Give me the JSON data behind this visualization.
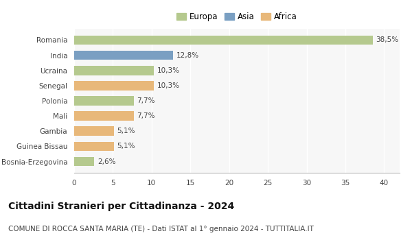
{
  "categories": [
    "Romania",
    "India",
    "Ucraina",
    "Senegal",
    "Polonia",
    "Mali",
    "Gambia",
    "Guinea Bissau",
    "Bosnia-Erzegovina"
  ],
  "values": [
    38.5,
    12.8,
    10.3,
    10.3,
    7.7,
    7.7,
    5.1,
    5.1,
    2.6
  ],
  "labels": [
    "38,5%",
    "12,8%",
    "10,3%",
    "10,3%",
    "7,7%",
    "7,7%",
    "5,1%",
    "5,1%",
    "2,6%"
  ],
  "colors": [
    "#b5c98e",
    "#7a9fc2",
    "#b5c98e",
    "#e8b87a",
    "#b5c98e",
    "#e8b87a",
    "#e8b87a",
    "#e8b87a",
    "#b5c98e"
  ],
  "legend_labels": [
    "Europa",
    "Asia",
    "Africa"
  ],
  "legend_colors": [
    "#b5c98e",
    "#7a9fc2",
    "#e8b87a"
  ],
  "title": "Cittadini Stranieri per Cittadinanza - 2024",
  "subtitle": "COMUNE DI ROCCA SANTA MARIA (TE) - Dati ISTAT al 1° gennaio 2024 - TUTTITALIA.IT",
  "xlim": [
    0,
    42
  ],
  "xticks": [
    0,
    5,
    10,
    15,
    20,
    25,
    30,
    35,
    40
  ],
  "background_color": "#ffffff",
  "plot_bg_color": "#f7f7f7",
  "grid_color": "#ffffff",
  "title_fontsize": 10,
  "subtitle_fontsize": 7.5,
  "label_fontsize": 7.5,
  "tick_fontsize": 7.5,
  "legend_fontsize": 8.5
}
